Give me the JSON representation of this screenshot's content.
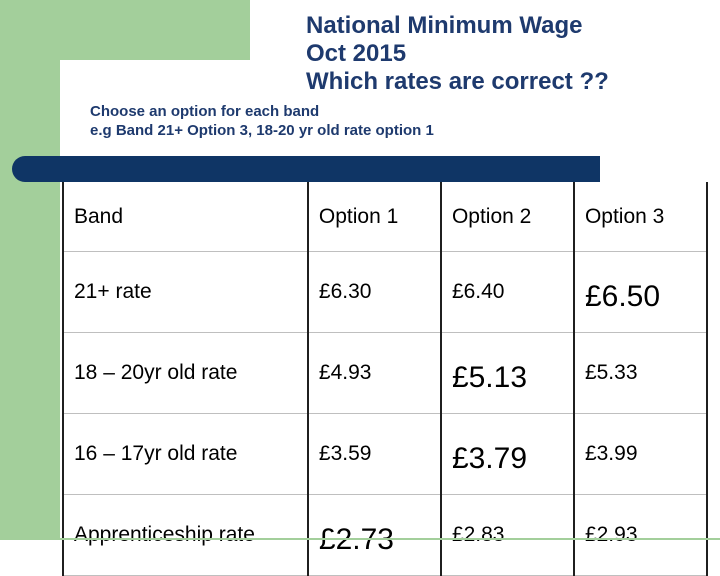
{
  "title": {
    "line1": "National Minimum Wage",
    "line2": "Oct 2015",
    "line3": "Which rates are correct ??"
  },
  "instructions": {
    "line1": "Choose an option for each band",
    "line2": "e.g Band 21+ Option 3, 18-20 yr old rate option 1"
  },
  "table": {
    "headers": [
      "Band",
      "Option 1",
      "Option 2",
      "Option 3"
    ],
    "rows": [
      {
        "band": "21+ rate",
        "options": [
          "£6.30",
          "£6.40",
          "£6.50"
        ]
      },
      {
        "band": "18 – 20yr old rate",
        "options": [
          "£4.93",
          "£5.13",
          "£5.33"
        ]
      },
      {
        "band": "16 – 17yr old rate",
        "options": [
          "£3.59",
          "£3.79",
          "£3.99"
        ]
      },
      {
        "band": "Apprenticeship rate",
        "options": [
          "£2.73",
          "£2.83",
          "£2.93"
        ]
      }
    ]
  },
  "colors": {
    "accent_green": "#a3cf9b",
    "navy": "#0f3565",
    "title_text": "#1e3a6e"
  }
}
